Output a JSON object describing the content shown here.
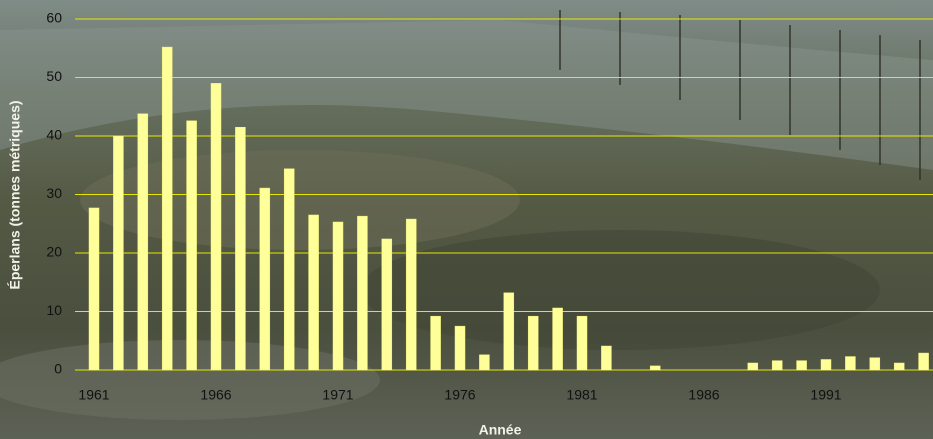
{
  "chart_data": {
    "type": "bar",
    "x_label": "Année",
    "y_label": "Éperlans (tonnes métriques)",
    "categories": [
      "1961",
      null,
      null,
      null,
      null,
      "1966",
      null,
      null,
      null,
      null,
      "1971",
      null,
      null,
      null,
      null,
      "1976",
      null,
      null,
      null,
      null,
      "1981",
      null,
      null,
      null,
      null,
      "1986",
      null,
      null,
      null,
      null,
      "1991",
      null,
      null,
      null,
      null
    ],
    "values": [
      27.7,
      40,
      43.8,
      55.2,
      42.6,
      49,
      41.5,
      31.1,
      34.4,
      26.5,
      25.3,
      26.3,
      22.4,
      25.8,
      9.2,
      7.5,
      2.6,
      13.2,
      9.2,
      10.6,
      9.2,
      4.1,
      0,
      0.7,
      0,
      0,
      0,
      1.2,
      1.6,
      1.6,
      1.8,
      2.3,
      2.1,
      1.2,
      2.9
    ],
    "color": "#ffff99",
    "grid_color": "#e6e600",
    "ylim": [
      0,
      60
    ],
    "yticks": [
      0,
      10,
      20,
      30,
      40,
      50,
      60
    ],
    "grid": true
  }
}
